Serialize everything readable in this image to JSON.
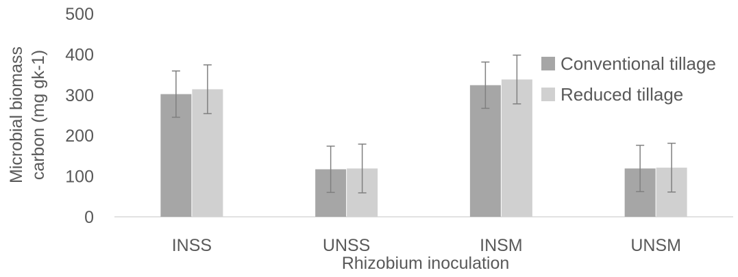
{
  "chart_data": {
    "type": "bar",
    "title": "",
    "xlabel": "Rhizobium inoculation",
    "ylabel_lines": [
      "Microbial biomass",
      "carbon (mg gk-1)"
    ],
    "categories": [
      "INSS",
      "UNSS",
      "INSM",
      "UNSM"
    ],
    "ylim": [
      0,
      500
    ],
    "yticks": [
      0,
      100,
      200,
      300,
      400,
      500
    ],
    "grid": false,
    "legend_position": "right",
    "series": [
      {
        "name": "Conventional tillage",
        "color": "#a6a6a6",
        "values": [
          302,
          117,
          324,
          119
        ],
        "errors": [
          57,
          57,
          57,
          57
        ]
      },
      {
        "name": "Reduced tillage",
        "color": "#d0d0d0",
        "values": [
          314,
          119,
          338,
          121
        ],
        "errors": [
          60,
          60,
          60,
          60
        ]
      }
    ]
  }
}
